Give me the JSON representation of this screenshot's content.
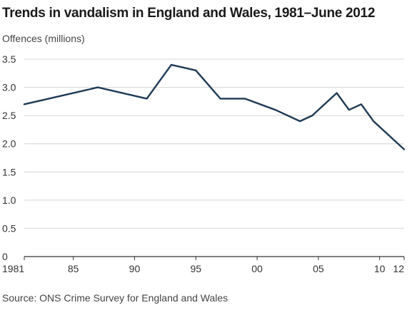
{
  "chart_data": {
    "type": "line",
    "title": "Trends in vandalism in England and Wales, 1981–June 2012",
    "ylabel": "Offences (millions)",
    "xlabel": "",
    "source": "Source: ONS Crime Survey for England and Wales",
    "xlim": [
      1981,
      2012
    ],
    "ylim": [
      0,
      3.5
    ],
    "grid": true,
    "x_ticks": [
      {
        "value": 1981,
        "label": "1981"
      },
      {
        "value": 1985,
        "label": "85"
      },
      {
        "value": 1990,
        "label": "90"
      },
      {
        "value": 1995,
        "label": "95"
      },
      {
        "value": 2000,
        "label": "00"
      },
      {
        "value": 2005,
        "label": "05"
      },
      {
        "value": 2010,
        "label": "10"
      },
      {
        "value": 2012,
        "label": "12"
      }
    ],
    "y_ticks": [
      {
        "value": 0,
        "label": "0"
      },
      {
        "value": 0.5,
        "label": "0.5"
      },
      {
        "value": 1.0,
        "label": "1.0"
      },
      {
        "value": 1.5,
        "label": "1.5"
      },
      {
        "value": 2.0,
        "label": "2.0"
      },
      {
        "value": 2.5,
        "label": "2.5"
      },
      {
        "value": 3.0,
        "label": "3.0"
      },
      {
        "value": 3.5,
        "label": "3.5"
      }
    ],
    "series": [
      {
        "color": "#1f3a56",
        "x": [
          1981,
          1983,
          1987,
          1991,
          1993,
          1995,
          1997,
          1999,
          2001.5,
          2003.5,
          2004.5,
          2006.5,
          2007.5,
          2008.5,
          2009.5,
          2012
        ],
        "values": [
          2.7,
          2.8,
          3.0,
          2.8,
          3.4,
          3.3,
          2.8,
          2.8,
          2.6,
          2.4,
          2.5,
          2.9,
          2.6,
          2.7,
          2.4,
          1.9
        ]
      }
    ]
  }
}
